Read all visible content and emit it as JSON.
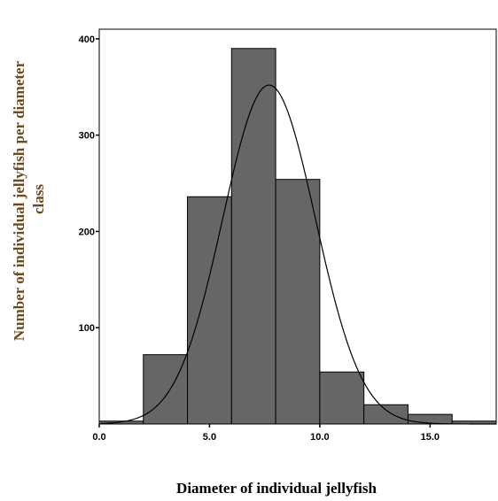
{
  "chart_data": {
    "type": "bar",
    "xlabel": "Diameter of individual jellyfish",
    "ylabel_lines": [
      "Number of individual jellyfish per diameter",
      "class"
    ],
    "xlim": [
      0,
      18
    ],
    "ylim": [
      0,
      410
    ],
    "x_ticks": [
      {
        "value": 0,
        "label": "0.0"
      },
      {
        "value": 5,
        "label": "5.0"
      },
      {
        "value": 10,
        "label": "10.0"
      },
      {
        "value": 15,
        "label": "15.0"
      }
    ],
    "y_ticks": [
      {
        "value": 100,
        "label": "100"
      },
      {
        "value": 200,
        "label": "200"
      },
      {
        "value": 300,
        "label": "300"
      },
      {
        "value": 400,
        "label": "400"
      }
    ],
    "bins": [
      {
        "start": 0,
        "end": 2,
        "value": 3
      },
      {
        "start": 2,
        "end": 4,
        "value": 72
      },
      {
        "start": 4,
        "end": 6,
        "value": 236
      },
      {
        "start": 6,
        "end": 8,
        "value": 390
      },
      {
        "start": 8,
        "end": 10,
        "value": 254
      },
      {
        "start": 10,
        "end": 12,
        "value": 54
      },
      {
        "start": 12,
        "end": 14,
        "value": 20
      },
      {
        "start": 14,
        "end": 16,
        "value": 10
      },
      {
        "start": 16,
        "end": 18,
        "value": 3
      }
    ],
    "normal_curve": {
      "mean": 7.7,
      "sd": 2.1,
      "peak": 352
    },
    "bar_color": "#666666",
    "bar_edge_color": "#000000",
    "curve_color": "#000000",
    "ylabel_color": "#6b4a1e",
    "xlabel_color": "#000000",
    "grid": false
  }
}
